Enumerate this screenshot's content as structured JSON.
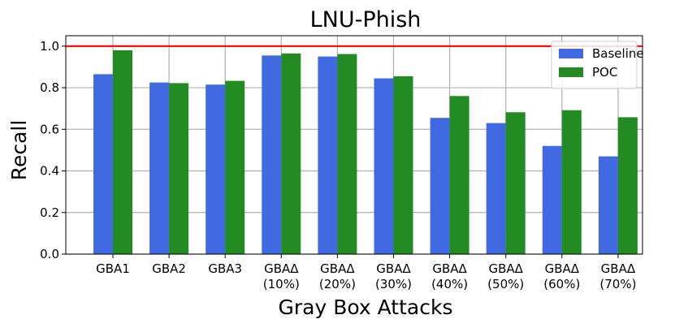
{
  "chart_data": {
    "type": "bar",
    "title": "LNU-Phish",
    "xlabel": "Gray Box Attacks",
    "ylabel": "Recall",
    "categories": [
      [
        "GBA1"
      ],
      [
        "GBA2"
      ],
      [
        "GBA3"
      ],
      [
        "GBAΔ",
        "(10%)"
      ],
      [
        "GBAΔ",
        "(20%)"
      ],
      [
        "GBAΔ",
        "(30%)"
      ],
      [
        "GBAΔ",
        "(40%)"
      ],
      [
        "GBAΔ",
        "(50%)"
      ],
      [
        "GBAΔ",
        "(60%)"
      ],
      [
        "GBAΔ",
        "(70%)"
      ]
    ],
    "series": [
      {
        "name": "Baseline",
        "color": "#4169e1",
        "values": [
          0.865,
          0.825,
          0.815,
          0.955,
          0.95,
          0.845,
          0.655,
          0.63,
          0.52,
          0.47
        ]
      },
      {
        "name": "POC",
        "color": "#228b22",
        "values": [
          0.98,
          0.822,
          0.833,
          0.965,
          0.962,
          0.855,
          0.76,
          0.682,
          0.692,
          0.658
        ]
      }
    ],
    "reference_line": {
      "value": 1.0,
      "color": "#ff0000"
    },
    "ylim": [
      0,
      1.05
    ],
    "yticks": [
      "0.0",
      "0.2",
      "0.4",
      "0.6",
      "0.8",
      "1.0"
    ],
    "grid": true,
    "legend": "top-right"
  }
}
